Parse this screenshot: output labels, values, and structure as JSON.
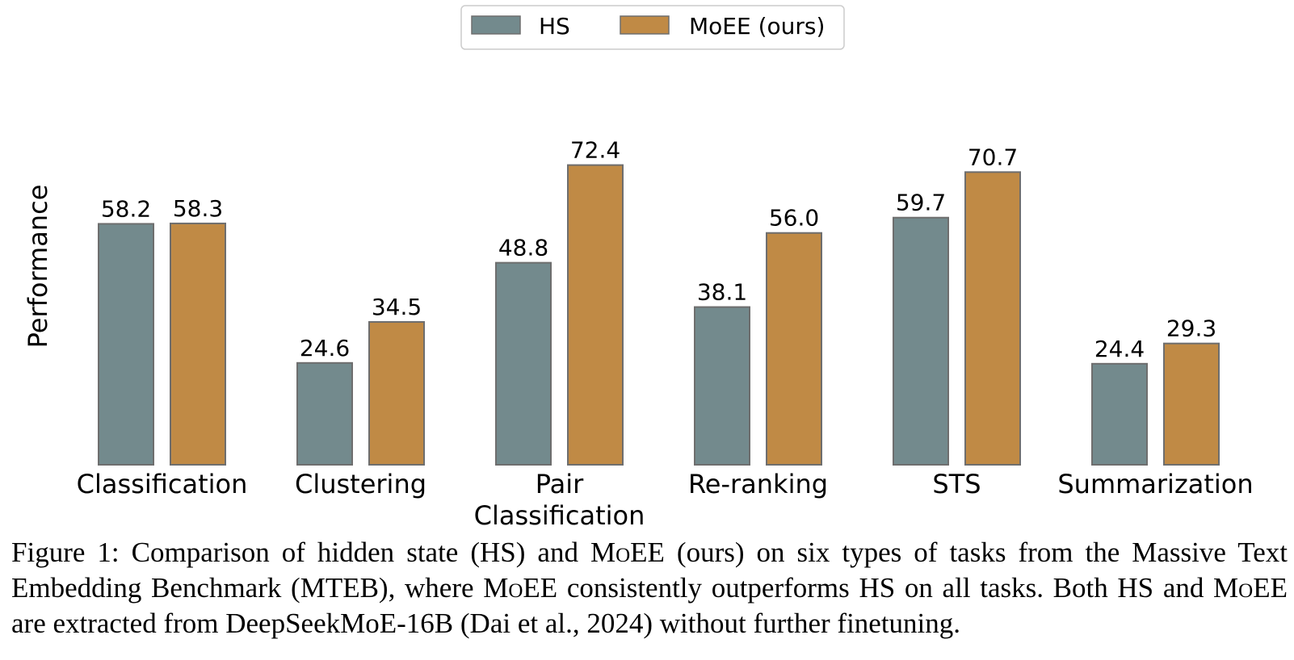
{
  "chart_data": {
    "type": "bar",
    "categories": [
      "Classification",
      "Clustering",
      "Pair\nClassification",
      "Re-ranking",
      "STS",
      "Summarization"
    ],
    "series": [
      {
        "name": "HS",
        "values": [
          58.2,
          24.6,
          48.8,
          38.1,
          59.7,
          24.4
        ]
      },
      {
        "name": "MoEE (ours)",
        "values": [
          58.3,
          34.5,
          72.4,
          56.0,
          70.7,
          29.3
        ]
      }
    ],
    "title": "",
    "xlabel": "",
    "ylabel": "Performance",
    "ylim": [
      0,
      75
    ],
    "grid": false,
    "legend_position": "top-center",
    "colors": {
      "HS": "#738a8d",
      "MoEE (ours)": "#c08a45",
      "edge": "#6e6e6e"
    }
  },
  "caption": {
    "figure_label": "Figure 1:",
    "part1": "Comparison of hidden state (HS) and ",
    "moee1": "MoEE",
    "part2": " (ours) on six types of tasks from the Massive Text Embedding Benchmark (MTEB), where ",
    "moee2": "MoEE",
    "part3": " consistently outperforms HS on all tasks. Both HS and ",
    "moee3": "MoEE",
    "part4": " are extracted from DeepSeekMoE-16B (Dai et al., 2024) without further finetuning."
  }
}
